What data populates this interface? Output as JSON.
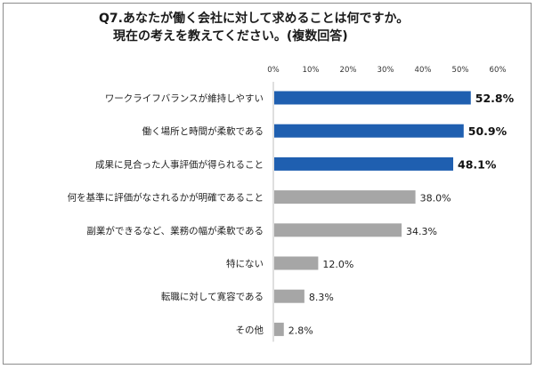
{
  "title": {
    "line1": "Q7.あなたが働く会社に対して求めることは何ですか。",
    "line2": "現在の考えを教えてください。(複数回答)"
  },
  "chart_data": {
    "type": "bar",
    "orientation": "horizontal",
    "categories": [
      "ワークライフバランスが維持しやすい",
      "働く場所と時間が柔軟である",
      "成果に見合った人事評価が得られること",
      "何を基準に評価がなされるかが明確であること",
      "副業ができるなど、業務の幅が柔軟である",
      "特にない",
      "転職に対して寛容である",
      "その他"
    ],
    "values": [
      52.8,
      50.9,
      48.1,
      38.0,
      34.3,
      12.0,
      8.3,
      2.8
    ],
    "value_labels": [
      "52.8%",
      "50.9%",
      "48.1%",
      "38.0%",
      "34.3%",
      "12.0%",
      "8.3%",
      "2.8%"
    ],
    "highlighted": [
      true,
      true,
      true,
      false,
      false,
      false,
      false,
      false
    ],
    "xlim": [
      0,
      60
    ],
    "ticks": [
      "0%",
      "10%",
      "20%",
      "30%",
      "40%",
      "50%",
      "60%"
    ],
    "tick_values": [
      0,
      10,
      20,
      30,
      40,
      50,
      60
    ],
    "grid": false,
    "colors": {
      "highlight": "#1f5fb0",
      "normal": "#a6a6a6",
      "axis": "#bfbfbf"
    }
  }
}
